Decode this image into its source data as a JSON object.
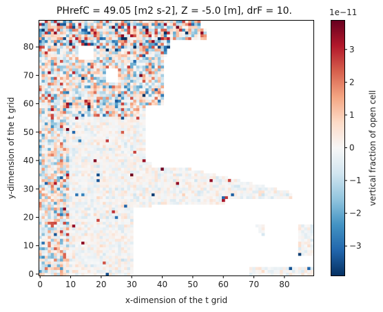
{
  "chart_data": {
    "type": "heatmap",
    "title": "PHrefC = 49.05 [m2 s-2], Z = -5.0 [m], drF = 10.",
    "xlabel": "x-dimension of the t grid",
    "ylabel": "y-dimension of the t grid",
    "xlim": [
      -0.5,
      89.5
    ],
    "ylim": [
      -0.5,
      89.5
    ],
    "x_ticks": [
      0,
      10,
      20,
      30,
      40,
      50,
      60,
      70,
      80
    ],
    "y_ticks": [
      0,
      10,
      20,
      30,
      40,
      50,
      60,
      70,
      80
    ],
    "colorbar": {
      "label": "vertical fraction of open cell",
      "multiplier": "1e−11",
      "vmin": -3.9,
      "vmax": 3.9,
      "ticks": [
        -3,
        -2,
        -1,
        0,
        1,
        2,
        3
      ],
      "tick_labels": [
        "−3",
        "−2",
        "−1",
        "0",
        "1",
        "2",
        "3"
      ],
      "colormap": "RdBu_r"
    },
    "colors": {
      "negative_extreme": "#053061",
      "neutral": "#f7f7f7",
      "positive_extreme": "#67001f"
    },
    "grid": false
  }
}
